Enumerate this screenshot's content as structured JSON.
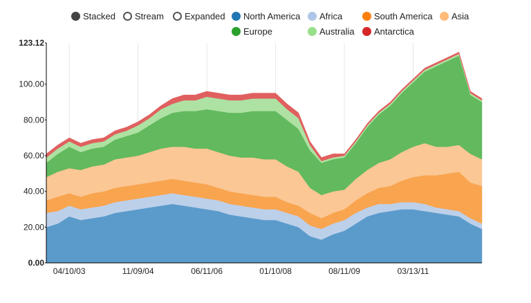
{
  "controls": [
    {
      "label": "Stacked",
      "selected": true
    },
    {
      "label": "Stream",
      "selected": false
    },
    {
      "label": "Expanded",
      "selected": false
    }
  ],
  "chart_data": {
    "type": "area",
    "stacked": true,
    "ylim": [
      0,
      123.12
    ],
    "y_ticks": [
      "0.00",
      "20.00",
      "40.00",
      "60.00",
      "80.00",
      "100.00",
      "123.12"
    ],
    "x_ticks": [
      "04/10/03",
      "11/09/04",
      "06/11/06",
      "01/10/08",
      "08/11/09",
      "03/13/11"
    ],
    "x_tick_positions": [
      1,
      4,
      7,
      10,
      13,
      16
    ],
    "x_domain": [
      0,
      19
    ],
    "x": [
      0,
      0.5,
      1,
      1.5,
      2,
      2.5,
      3,
      3.5,
      4,
      4.5,
      5,
      5.5,
      6,
      6.5,
      7,
      7.5,
      8,
      8.5,
      9,
      9.5,
      10,
      10.5,
      11,
      11.5,
      12,
      12.5,
      13,
      13.5,
      14,
      14.5,
      15,
      15.5,
      16,
      16.5,
      17,
      17.5,
      18,
      18.5,
      19
    ],
    "series": [
      {
        "name": "North America",
        "color": "#1f77b4",
        "fill": "#5b9bcb",
        "values": [
          20,
          22,
          26,
          24,
          25,
          26,
          28,
          29,
          30,
          31,
          32,
          33,
          32,
          31,
          30,
          29,
          27,
          26,
          25,
          24,
          24,
          22,
          20,
          15,
          13,
          16,
          18,
          22,
          26,
          28,
          29,
          30,
          30,
          29,
          28,
          27,
          26,
          22,
          19
        ]
      },
      {
        "name": "Africa",
        "color": "#aec7e8",
        "fill": "#bdd0ea",
        "values": [
          8,
          7,
          6,
          6,
          6,
          6,
          6,
          6,
          6,
          6,
          6,
          6,
          6,
          6,
          6,
          6,
          6,
          6,
          6,
          6,
          6,
          6,
          6,
          6,
          6,
          6,
          6,
          6,
          5,
          5,
          4,
          4,
          4,
          4,
          3,
          3,
          3,
          3,
          3
        ]
      },
      {
        "name": "South America",
        "color": "#ff7f0e",
        "fill": "#f9a44f",
        "values": [
          7,
          8,
          7,
          7,
          8,
          8,
          8,
          8,
          8,
          8,
          8,
          8,
          8,
          8,
          8,
          7,
          7,
          7,
          7,
          7,
          7,
          6,
          6,
          7,
          6,
          6,
          6,
          7,
          8,
          9,
          10,
          12,
          14,
          16,
          18,
          20,
          22,
          20,
          21
        ]
      },
      {
        "name": "Asia",
        "color": "#ffbb78",
        "fill": "#fbc794",
        "values": [
          13,
          14,
          14,
          15,
          15,
          15,
          16,
          16,
          16,
          17,
          18,
          18,
          19,
          19,
          20,
          20,
          20,
          20,
          21,
          21,
          21,
          20,
          19,
          14,
          13,
          12,
          11,
          12,
          13,
          14,
          15,
          16,
          17,
          18,
          16,
          15,
          15,
          16,
          15
        ]
      },
      {
        "name": "Europe",
        "color": "#2ca02c",
        "fill": "#62b95e",
        "values": [
          8,
          10,
          12,
          10,
          10,
          10,
          11,
          12,
          13,
          15,
          17,
          19,
          20,
          21,
          22,
          23,
          24,
          25,
          26,
          27,
          27,
          26,
          24,
          21,
          18,
          18,
          18,
          20,
          24,
          27,
          30,
          33,
          36,
          40,
          45,
          48,
          50,
          33,
          32
        ]
      },
      {
        "name": "Australia",
        "color": "#98df8a",
        "fill": "#aee2a2",
        "values": [
          3,
          3,
          3,
          3,
          3,
          3,
          3,
          3,
          4,
          4,
          5,
          5,
          6,
          6,
          7,
          7,
          7,
          7,
          7,
          7,
          7,
          6,
          6,
          3,
          1,
          1,
          1,
          1,
          1,
          1,
          1,
          1,
          1,
          1,
          1,
          1,
          1,
          1,
          1
        ]
      },
      {
        "name": "Antarctica",
        "color": "#d62728",
        "fill": "#e0605f",
        "values": [
          2,
          2,
          2,
          2,
          2,
          2,
          2,
          2,
          2,
          2,
          2,
          3,
          3,
          3,
          3,
          3,
          3,
          3,
          3,
          3,
          3,
          3,
          3,
          2,
          2,
          2,
          1,
          1,
          1,
          1,
          1,
          1,
          1,
          1,
          1,
          1,
          1,
          1,
          1
        ]
      }
    ]
  }
}
